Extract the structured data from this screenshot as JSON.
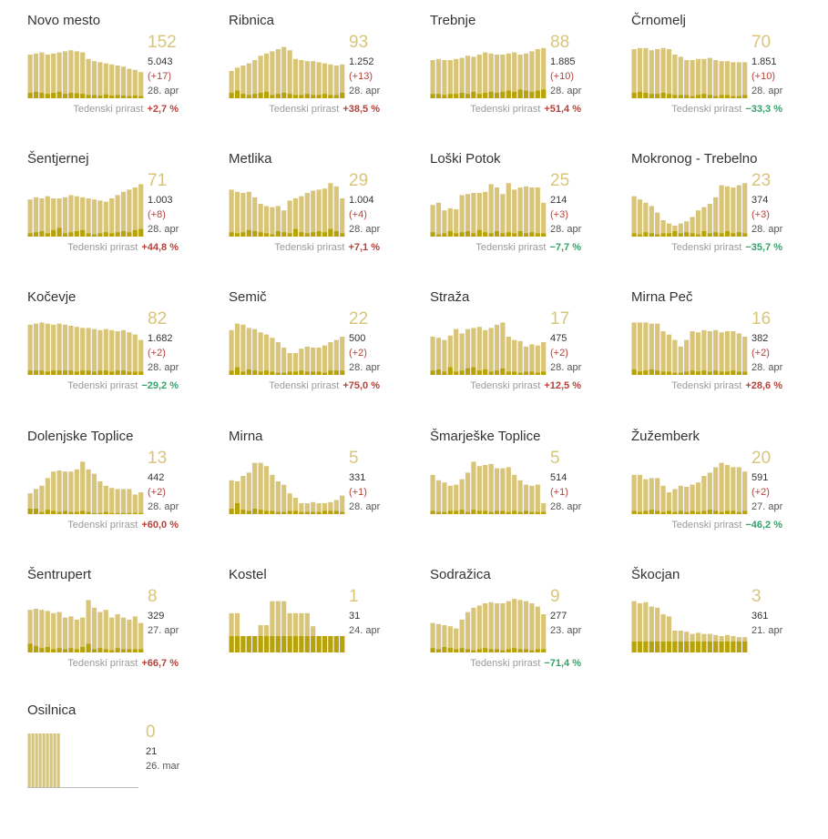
{
  "labels": {
    "growth": "Tedenski prirast"
  },
  "colors": {
    "bar": "#d9c57a",
    "bar_recent": "#b8a20c",
    "up": "#b5413a",
    "down": "#35a26a",
    "big_number": "#d9c57a"
  },
  "municipalities": [
    {
      "name": "Novo mesto",
      "active": "152",
      "total": "5.043",
      "delta": "(+17)",
      "date": "28. apr",
      "growth": "+2,7 %",
      "trend": "up",
      "chart_data": {
        "type": "bar",
        "values": [
          80,
          82,
          84,
          80,
          82,
          84,
          86,
          88,
          86,
          84,
          72,
          68,
          66,
          64,
          62,
          60,
          58,
          54,
          52,
          48
        ],
        "new": [
          10,
          12,
          10,
          8,
          10,
          12,
          8,
          10,
          9,
          8,
          6,
          6,
          5,
          7,
          5,
          6,
          5,
          4,
          5,
          4
        ]
      }
    },
    {
      "name": "Ribnica",
      "active": "93",
      "total": "1.252",
      "delta": "(+13)",
      "date": "28. apr",
      "growth": "+38,5 %",
      "trend": "up",
      "chart_data": {
        "type": "bar",
        "values": [
          50,
          56,
          60,
          64,
          70,
          78,
          82,
          86,
          90,
          94,
          88,
          72,
          70,
          68,
          68,
          66,
          64,
          62,
          60,
          62
        ],
        "new": [
          10,
          14,
          8,
          6,
          8,
          10,
          12,
          6,
          8,
          10,
          8,
          6,
          6,
          8,
          6,
          6,
          8,
          6,
          6,
          10
        ]
      }
    },
    {
      "name": "Trebnje",
      "active": "88",
      "total": "1.885",
      "delta": "(+10)",
      "date": "28. apr",
      "growth": "+51,4 %",
      "trend": "up",
      "chart_data": {
        "type": "bar",
        "values": [
          70,
          72,
          70,
          70,
          72,
          74,
          78,
          76,
          80,
          84,
          82,
          80,
          80,
          82,
          84,
          80,
          82,
          86,
          90,
          92
        ],
        "new": [
          8,
          8,
          6,
          8,
          8,
          10,
          8,
          12,
          8,
          10,
          12,
          10,
          12,
          14,
          12,
          16,
          14,
          12,
          14,
          16
        ]
      }
    },
    {
      "name": "Črnomelj",
      "active": "70",
      "total": "1.851",
      "delta": "(+10)",
      "date": "28. apr",
      "growth": "−33,3 %",
      "trend": "down",
      "chart_data": {
        "type": "bar",
        "values": [
          90,
          92,
          92,
          88,
          90,
          92,
          90,
          80,
          76,
          70,
          70,
          72,
          72,
          74,
          70,
          68,
          68,
          66,
          66,
          66
        ],
        "new": [
          10,
          12,
          10,
          8,
          8,
          10,
          8,
          6,
          6,
          6,
          4,
          6,
          8,
          6,
          4,
          6,
          6,
          4,
          4,
          6
        ]
      }
    },
    {
      "name": "Šentjernej",
      "active": "71",
      "total": "1.003",
      "delta": "(+8)",
      "date": "28. apr",
      "growth": "+44,8 %",
      "trend": "up",
      "chart_data": {
        "type": "bar",
        "values": [
          68,
          72,
          70,
          74,
          70,
          70,
          72,
          76,
          74,
          72,
          70,
          68,
          66,
          64,
          70,
          76,
          82,
          86,
          90,
          96
        ],
        "new": [
          6,
          8,
          10,
          6,
          12,
          16,
          6,
          8,
          10,
          12,
          6,
          4,
          6,
          8,
          6,
          8,
          10,
          8,
          12,
          14
        ]
      }
    },
    {
      "name": "Metlika",
      "active": "29",
      "total": "1.004",
      "delta": "(+4)",
      "date": "28. apr",
      "growth": "+7,1 %",
      "trend": "up",
      "chart_data": {
        "type": "bar",
        "values": [
          86,
          82,
          80,
          82,
          72,
          60,
          56,
          54,
          56,
          48,
          66,
          70,
          74,
          80,
          84,
          86,
          88,
          98,
          92,
          70
        ],
        "new": [
          8,
          6,
          8,
          12,
          10,
          8,
          6,
          4,
          10,
          8,
          6,
          14,
          8,
          6,
          8,
          10,
          8,
          14,
          10,
          6
        ]
      }
    },
    {
      "name": "Loški Potok",
      "active": "25",
      "total": "214",
      "delta": "(+3)",
      "date": "28. apr",
      "growth": "−7,7 %",
      "trend": "down",
      "chart_data": {
        "type": "bar",
        "values": [
          58,
          62,
          48,
          52,
          50,
          76,
          78,
          80,
          80,
          82,
          96,
          90,
          78,
          98,
          86,
          90,
          92,
          90,
          90,
          62
        ],
        "new": [
          8,
          4,
          6,
          10,
          6,
          8,
          10,
          6,
          12,
          8,
          6,
          10,
          6,
          8,
          6,
          10,
          6,
          8,
          6,
          6
        ]
      }
    },
    {
      "name": "Mokronog - Trebelno",
      "active": "23",
      "total": "374",
      "delta": "(+3)",
      "date": "28. apr",
      "growth": "−35,7 %",
      "trend": "down",
      "chart_data": {
        "type": "bar",
        "values": [
          74,
          68,
          62,
          56,
          44,
          30,
          24,
          20,
          24,
          28,
          36,
          48,
          54,
          60,
          72,
          94,
          92,
          90,
          94,
          98
        ],
        "new": [
          6,
          4,
          8,
          6,
          4,
          6,
          6,
          10,
          6,
          8,
          6,
          4,
          10,
          6,
          8,
          6,
          10,
          6,
          8,
          6
        ]
      }
    },
    {
      "name": "Kočevje",
      "active": "82",
      "total": "1.682",
      "delta": "(+2)",
      "date": "28. apr",
      "growth": "−29,2 %",
      "trend": "down",
      "chart_data": {
        "type": "bar",
        "values": [
          92,
          94,
          96,
          94,
          92,
          94,
          92,
          90,
          88,
          86,
          86,
          84,
          82,
          84,
          82,
          80,
          82,
          78,
          74,
          64
        ],
        "new": [
          8,
          8,
          8,
          6,
          8,
          8,
          8,
          8,
          6,
          8,
          8,
          6,
          8,
          8,
          6,
          8,
          8,
          6,
          6,
          6
        ]
      }
    },
    {
      "name": "Semič",
      "active": "22",
      "total": "500",
      "delta": "(+2)",
      "date": "28. apr",
      "growth": "+75,0 %",
      "trend": "up",
      "chart_data": {
        "type": "bar",
        "values": [
          82,
          94,
          92,
          86,
          84,
          78,
          74,
          68,
          60,
          50,
          40,
          40,
          48,
          52,
          50,
          50,
          54,
          60,
          64,
          70
        ],
        "new": [
          8,
          14,
          6,
          10,
          8,
          6,
          8,
          6,
          4,
          4,
          6,
          6,
          8,
          6,
          6,
          6,
          4,
          8,
          8,
          8
        ]
      }
    },
    {
      "name": "Straža",
      "active": "17",
      "total": "475",
      "delta": "(+2)",
      "date": "28. apr",
      "growth": "+12,5 %",
      "trend": "up",
      "chart_data": {
        "type": "bar",
        "values": [
          70,
          68,
          64,
          72,
          84,
          76,
          84,
          86,
          88,
          82,
          86,
          92,
          96,
          70,
          64,
          62,
          52,
          56,
          54,
          60
        ],
        "new": [
          8,
          10,
          6,
          14,
          6,
          8,
          12,
          14,
          8,
          10,
          6,
          8,
          12,
          6,
          6,
          4,
          6,
          6,
          4,
          6
        ]
      }
    },
    {
      "name": "Mirna Peč",
      "active": "16",
      "total": "382",
      "delta": "(+2)",
      "date": "28. apr",
      "growth": "+28,6 %",
      "trend": "up",
      "chart_data": {
        "type": "bar",
        "values": [
          96,
          96,
          96,
          94,
          94,
          80,
          74,
          64,
          52,
          64,
          80,
          78,
          82,
          80,
          82,
          78,
          80,
          80,
          76,
          70
        ],
        "new": [
          10,
          6,
          8,
          10,
          8,
          6,
          6,
          4,
          4,
          6,
          8,
          6,
          8,
          6,
          8,
          6,
          6,
          8,
          6,
          6
        ]
      }
    },
    {
      "name": "Dolenjske Toplice",
      "active": "13",
      "total": "442",
      "delta": "(+2)",
      "date": "28. apr",
      "growth": "+60,0 %",
      "trend": "up",
      "chart_data": {
        "type": "bar",
        "values": [
          38,
          46,
          52,
          66,
          78,
          80,
          78,
          78,
          82,
          96,
          82,
          74,
          60,
          52,
          48,
          46,
          46,
          46,
          36,
          40
        ],
        "new": [
          10,
          10,
          4,
          8,
          6,
          4,
          6,
          4,
          4,
          6,
          4,
          2,
          2,
          4,
          2,
          2,
          2,
          2,
          2,
          2
        ]
      }
    },
    {
      "name": "Mirna",
      "active": "5",
      "total": "331",
      "delta": "(+1)",
      "date": "28. apr",
      "growth": "",
      "trend": "",
      "chart_data": {
        "type": "bar",
        "values": [
          62,
          60,
          70,
          76,
          94,
          94,
          88,
          72,
          60,
          54,
          38,
          30,
          20,
          20,
          22,
          20,
          20,
          22,
          26,
          34
        ],
        "new": [
          10,
          20,
          8,
          6,
          10,
          8,
          6,
          6,
          4,
          4,
          6,
          6,
          4,
          4,
          4,
          4,
          6,
          6,
          6,
          4
        ]
      }
    },
    {
      "name": "Šmarješke Toplice",
      "active": "5",
      "total": "514",
      "delta": "(+1)",
      "date": "28. apr",
      "growth": "",
      "trend": "",
      "chart_data": {
        "type": "bar",
        "values": [
          72,
          62,
          58,
          52,
          54,
          64,
          76,
          96,
          88,
          90,
          92,
          84,
          84,
          86,
          72,
          62,
          54,
          52,
          54,
          20
        ],
        "new": [
          6,
          4,
          4,
          6,
          6,
          8,
          4,
          8,
          6,
          6,
          4,
          6,
          6,
          4,
          6,
          4,
          6,
          4,
          4,
          4
        ]
      }
    },
    {
      "name": "Žužemberk",
      "active": "20",
      "total": "591",
      "delta": "(+2)",
      "date": "27. apr",
      "growth": "−46,2 %",
      "trend": "down",
      "chart_data": {
        "type": "bar",
        "values": [
          72,
          72,
          64,
          66,
          66,
          52,
          40,
          46,
          52,
          50,
          54,
          58,
          70,
          76,
          86,
          94,
          90,
          86,
          86,
          78
        ],
        "new": [
          6,
          4,
          6,
          8,
          6,
          4,
          6,
          4,
          6,
          4,
          6,
          4,
          6,
          8,
          6,
          4,
          6,
          6,
          4,
          6
        ]
      }
    },
    {
      "name": "Šentrupert",
      "active": "8",
      "total": "329",
      "delta": "",
      "date": "27. apr",
      "growth": "+66,7 %",
      "trend": "up",
      "chart_data": {
        "type": "bar",
        "values": [
          78,
          80,
          78,
          76,
          72,
          74,
          64,
          66,
          60,
          64,
          96,
          82,
          74,
          78,
          64,
          70,
          64,
          60,
          66,
          54
        ],
        "new": [
          16,
          12,
          8,
          10,
          6,
          8,
          6,
          8,
          6,
          10,
          16,
          6,
          8,
          6,
          4,
          8,
          6,
          6,
          6,
          6
        ]
      }
    },
    {
      "name": "Kostel",
      "active": "1",
      "total": "31",
      "delta": "",
      "date": "24. apr",
      "growth": "",
      "trend": "",
      "chart_data": {
        "type": "bar",
        "values": [
          72,
          72,
          30,
          30,
          30,
          50,
          50,
          94,
          94,
          94,
          72,
          72,
          72,
          72,
          48,
          30,
          30,
          30,
          30,
          30
        ],
        "new": [
          30,
          30,
          30,
          30,
          30,
          30,
          30,
          30,
          30,
          30,
          30,
          30,
          30,
          30,
          30,
          30,
          30,
          30,
          30,
          30
        ]
      }
    },
    {
      "name": "Sodražica",
      "active": "9",
      "total": "277",
      "delta": "",
      "date": "23. apr",
      "growth": "−71,4 %",
      "trend": "down",
      "chart_data": {
        "type": "bar",
        "values": [
          54,
          52,
          50,
          48,
          44,
          60,
          74,
          82,
          86,
          90,
          92,
          90,
          90,
          94,
          98,
          96,
          94,
          90,
          84,
          70
        ],
        "new": [
          8,
          6,
          10,
          8,
          6,
          8,
          6,
          4,
          6,
          8,
          6,
          6,
          4,
          6,
          8,
          6,
          6,
          4,
          6,
          6
        ]
      }
    },
    {
      "name": "Škocjan",
      "active": "3",
      "total": "361",
      "delta": "",
      "date": "21. apr",
      "growth": "",
      "trend": "",
      "chart_data": {
        "type": "bar",
        "values": [
          94,
          90,
          92,
          84,
          82,
          70,
          66,
          40,
          40,
          38,
          34,
          36,
          34,
          34,
          32,
          30,
          32,
          30,
          28,
          28
        ],
        "new": [
          20,
          20,
          20,
          20,
          20,
          20,
          20,
          20,
          20,
          20,
          20,
          20,
          20,
          20,
          20,
          20,
          20,
          20,
          20,
          20
        ]
      }
    },
    {
      "name": "Osilnica",
      "active": "0",
      "total": "21",
      "delta": "",
      "date": "26. mar",
      "growth": "",
      "trend": "",
      "chart_data": {
        "type": "bar",
        "values": [
          100,
          100,
          100,
          100,
          100,
          100,
          100,
          100,
          100,
          0,
          0,
          0,
          0,
          0,
          0,
          0,
          0,
          0,
          0,
          0
        ],
        "new": [
          0,
          0,
          0,
          0,
          0,
          0,
          0,
          0,
          0,
          0,
          0,
          0,
          0,
          0,
          0,
          0,
          0,
          0,
          0,
          0
        ]
      }
    }
  ]
}
